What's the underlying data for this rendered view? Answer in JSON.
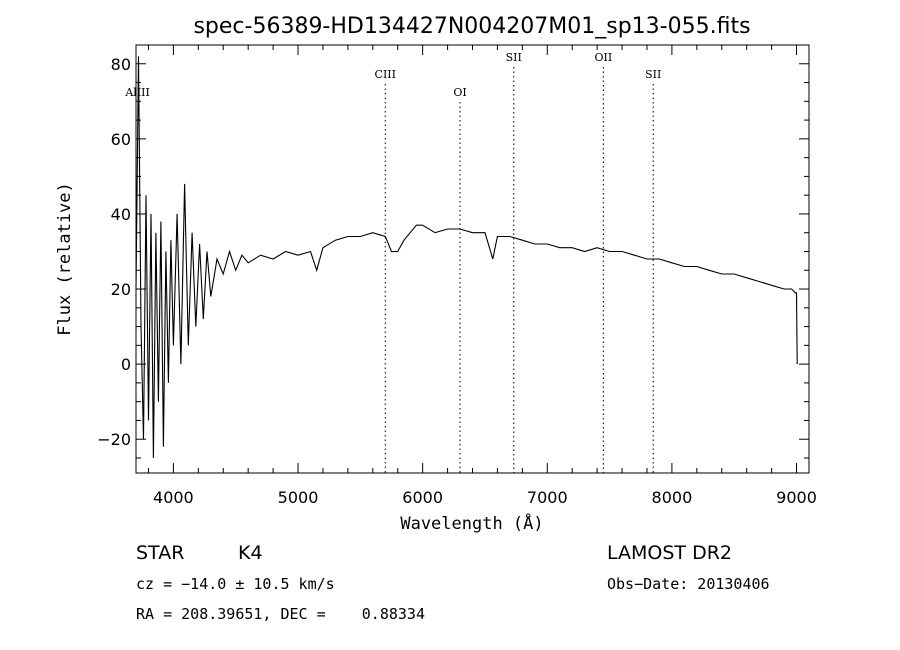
{
  "chart_data": {
    "type": "line",
    "title": "spec-56389-HD134427N004207M01_sp13-055.fits",
    "xlabel": "Wavelength (Å)",
    "ylabel": "Flux (relative)",
    "xlim": [
      3700,
      9100
    ],
    "ylim": [
      -29,
      85
    ],
    "xticks": [
      4000,
      5000,
      6000,
      7000,
      8000,
      9000
    ],
    "yticks": [
      -20,
      0,
      20,
      40,
      60,
      80
    ],
    "grid": false,
    "series": [
      {
        "x": [
          3700,
          3720,
          3740,
          3760,
          3780,
          3800,
          3820,
          3840,
          3860,
          3880,
          3900,
          3920,
          3940,
          3960,
          3980,
          4000,
          4030,
          4060,
          4090,
          4120,
          4150,
          4180,
          4210,
          4240,
          4270,
          4300,
          4350,
          4400,
          4450,
          4500,
          4550,
          4600,
          4700,
          4800,
          4900,
          5000,
          5100,
          5150,
          5200,
          5300,
          5400,
          5500,
          5600,
          5700,
          5750,
          5800,
          5850,
          5900,
          5950,
          6000,
          6100,
          6200,
          6300,
          6400,
          6500,
          6563,
          6600,
          6700,
          6800,
          6900,
          7000,
          7100,
          7200,
          7300,
          7400,
          7500,
          7600,
          7700,
          7800,
          7900,
          8000,
          8100,
          8200,
          8300,
          8400,
          8500,
          8600,
          8700,
          8800,
          8900,
          8960,
          8990,
          9000,
          9005
        ],
        "y": [
          20,
          82,
          10,
          -20,
          45,
          -15,
          40,
          -25,
          35,
          -10,
          38,
          -22,
          30,
          -5,
          33,
          5,
          40,
          0,
          48,
          5,
          35,
          10,
          32,
          12,
          30,
          18,
          28,
          24,
          30,
          25,
          29,
          27,
          29,
          28,
          30,
          29,
          30,
          25,
          31,
          33,
          34,
          34,
          35,
          34,
          30,
          30,
          33,
          35,
          37,
          37,
          35,
          36,
          36,
          35,
          35,
          28,
          34,
          34,
          33,
          32,
          32,
          31,
          31,
          30,
          31,
          30,
          30,
          29,
          28,
          28,
          27,
          26,
          26,
          25,
          24,
          24,
          23,
          22,
          21,
          20,
          20,
          19,
          19,
          0
        ]
      }
    ],
    "lines": [
      {
        "label": "AlIII",
        "x": 3713
      },
      {
        "label": "CIII",
        "x": 5700
      },
      {
        "label": "OI",
        "x": 6300
      },
      {
        "label": "SII",
        "x": 6731
      },
      {
        "label": "OII",
        "x": 7450
      },
      {
        "label": "SII",
        "x": 7850
      }
    ]
  },
  "info": {
    "class": "STAR",
    "subclass": "K4",
    "survey": "LAMOST DR2",
    "cz": "cz = −14.0 ± 10.5 km/s",
    "obs_date": "Obs−Date: 20130406",
    "radec": "RA = 208.39651, DEC =    0.88334"
  }
}
